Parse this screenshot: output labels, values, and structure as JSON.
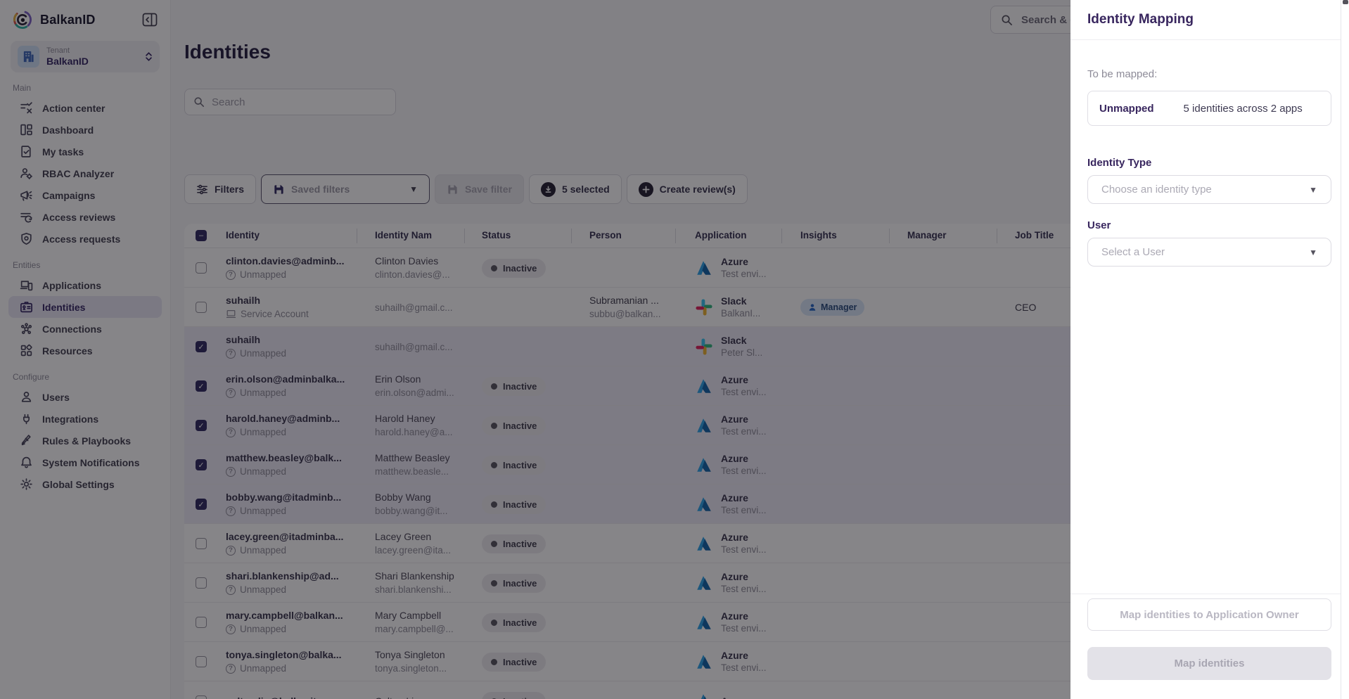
{
  "brand": {
    "name": "BalkanID",
    "tenant_label": "Tenant",
    "tenant_value": "BalkanID"
  },
  "topbar": {
    "global_search_text": "Search & d"
  },
  "sidebar": {
    "sections": [
      {
        "label": "Main",
        "items": [
          {
            "label": "Action center",
            "icon": "action-center-icon"
          },
          {
            "label": "Dashboard",
            "icon": "dashboard-icon"
          },
          {
            "label": "My tasks",
            "icon": "tasks-icon"
          },
          {
            "label": "RBAC Analyzer",
            "icon": "rbac-icon"
          },
          {
            "label": "Campaigns",
            "icon": "megaphone-icon"
          },
          {
            "label": "Access reviews",
            "icon": "reviews-icon"
          },
          {
            "label": "Access requests",
            "icon": "shield-icon"
          }
        ]
      },
      {
        "label": "Entities",
        "items": [
          {
            "label": "Applications",
            "icon": "devices-icon"
          },
          {
            "label": "Identities",
            "icon": "id-card-icon",
            "active": true
          },
          {
            "label": "Connections",
            "icon": "network-icon"
          },
          {
            "label": "Resources",
            "icon": "resources-icon"
          }
        ]
      },
      {
        "label": "Configure",
        "items": [
          {
            "label": "Users",
            "icon": "user-icon"
          },
          {
            "label": "Integrations",
            "icon": "plug-icon"
          },
          {
            "label": "Rules & Playbooks",
            "icon": "pen-icon"
          },
          {
            "label": "System Notifications",
            "icon": "bell-icon"
          },
          {
            "label": "Global Settings",
            "icon": "gear-icon"
          }
        ]
      }
    ]
  },
  "page": {
    "title": "Identities",
    "search_placeholder": "Search"
  },
  "toolbar": {
    "filters_label": "Filters",
    "saved_filters_label": "Saved filters",
    "save_filter_label": "Save filter",
    "selected_label": "5 selected",
    "create_review_label": "Create review(s)"
  },
  "table": {
    "columns": [
      "Identity",
      "Identity Nam",
      "Status",
      "Person",
      "Application",
      "Insights",
      "Manager",
      "Job Title"
    ],
    "rows": [
      {
        "identity": "clinton.davies@adminb...",
        "tag": "Unmapped",
        "tag_icon": "question",
        "name": "Clinton Davies",
        "email": "clinton.davies@...",
        "status": "Inactive",
        "person_name": "",
        "person_email": "",
        "app": "Azure",
        "app_sub": "Test envi...",
        "insight": "",
        "job_title": "",
        "checked": false,
        "selected": false
      },
      {
        "identity": "suhailh",
        "tag": "Service Account",
        "tag_icon": "monitor",
        "name": "",
        "email": "suhailh@gmail.c...",
        "status": "",
        "person_name": "Subramanian ...",
        "person_email": "subbu@balkan...",
        "app": "Slack",
        "app_sub": "BalkanI...",
        "insight": "Manager",
        "job_title": "CEO",
        "checked": false,
        "selected": false
      },
      {
        "identity": "suhailh",
        "tag": "Unmapped",
        "tag_icon": "question",
        "name": "",
        "email": "suhailh@gmail.c...",
        "status": "",
        "person_name": "",
        "person_email": "",
        "app": "Slack",
        "app_sub": "Peter Sl...",
        "insight": "",
        "job_title": "",
        "checked": true,
        "selected": true
      },
      {
        "identity": "erin.olson@adminbalka...",
        "tag": "Unmapped",
        "tag_icon": "question",
        "name": "Erin Olson",
        "email": "erin.olson@admi...",
        "status": "Inactive",
        "person_name": "",
        "person_email": "",
        "app": "Azure",
        "app_sub": "Test envi...",
        "insight": "",
        "job_title": "",
        "checked": true,
        "selected": true
      },
      {
        "identity": "harold.haney@adminb...",
        "tag": "Unmapped",
        "tag_icon": "question",
        "name": "Harold Haney",
        "email": "harold.haney@a...",
        "status": "Inactive",
        "person_name": "",
        "person_email": "",
        "app": "Azure",
        "app_sub": "Test envi...",
        "insight": "",
        "job_title": "",
        "checked": true,
        "selected": true
      },
      {
        "identity": "matthew.beasley@balk...",
        "tag": "Unmapped",
        "tag_icon": "question",
        "name": "Matthew Beasley",
        "email": "matthew.beasle...",
        "status": "Inactive",
        "person_name": "",
        "person_email": "",
        "app": "Azure",
        "app_sub": "Test envi...",
        "insight": "",
        "job_title": "",
        "checked": true,
        "selected": true
      },
      {
        "identity": "bobby.wang@itadminb...",
        "tag": "Unmapped",
        "tag_icon": "question",
        "name": "Bobby Wang",
        "email": "bobby.wang@it...",
        "status": "Inactive",
        "person_name": "",
        "person_email": "",
        "app": "Azure",
        "app_sub": "Test envi...",
        "insight": "",
        "job_title": "",
        "checked": true,
        "selected": true
      },
      {
        "identity": "lacey.green@itadminba...",
        "tag": "Unmapped",
        "tag_icon": "question",
        "name": "Lacey Green",
        "email": "lacey.green@ita...",
        "status": "Inactive",
        "person_name": "",
        "person_email": "",
        "app": "Azure",
        "app_sub": "Test envi...",
        "insight": "",
        "job_title": "",
        "checked": false,
        "selected": false
      },
      {
        "identity": "shari.blankenship@ad...",
        "tag": "Unmapped",
        "tag_icon": "question",
        "name": "Shari Blankenship",
        "email": "shari.blankenshi...",
        "status": "Inactive",
        "person_name": "",
        "person_email": "",
        "app": "Azure",
        "app_sub": "Test envi...",
        "insight": "",
        "job_title": "",
        "checked": false,
        "selected": false
      },
      {
        "identity": "mary.campbell@balkan...",
        "tag": "Unmapped",
        "tag_icon": "question",
        "name": "Mary Campbell",
        "email": "mary.campbell@...",
        "status": "Inactive",
        "person_name": "",
        "person_email": "",
        "app": "Azure",
        "app_sub": "Test envi...",
        "insight": "",
        "job_title": "",
        "checked": false,
        "selected": false
      },
      {
        "identity": "tonya.singleton@balka...",
        "tag": "Unmapped",
        "tag_icon": "question",
        "name": "Tonya Singleton",
        "email": "tonya.singleton...",
        "status": "Inactive",
        "person_name": "",
        "person_email": "",
        "app": "Azure",
        "app_sub": "Test envi...",
        "insight": "",
        "job_title": "",
        "checked": false,
        "selected": false
      },
      {
        "identity": "colton.liu@balkanit.on...",
        "tag": "",
        "tag_icon": "",
        "name": "Colton Liu",
        "email": "",
        "status": "Inactive",
        "person_name": "",
        "person_email": "",
        "app": "Azure",
        "app_sub": "",
        "insight": "",
        "job_title": "",
        "checked": false,
        "selected": false
      }
    ],
    "header_checkbox_state": "indeterminate"
  },
  "drawer": {
    "title": "Identity Mapping",
    "to_be_mapped_label": "To be mapped:",
    "summary_status": "Unmapped",
    "summary_text": "5 identities across 2 apps",
    "identity_type_label": "Identity Type",
    "identity_type_placeholder": "Choose an identity type",
    "user_label": "User",
    "user_placeholder": "Select a User",
    "map_to_owner_label": "Map identities to Application Owner",
    "map_identities_label": "Map identities"
  },
  "colors": {
    "brand_purple": "#38265E",
    "selected_row": "#ECEAF6",
    "sidebar_active": "#E9E7F4",
    "checkbox_checked": "#2E2960",
    "status_badge_bg": "#ECEBEF",
    "manager_badge_bg": "#D9E6F8",
    "manager_badge_text": "#274A7D",
    "azure_blue_light": "#2AA3E8",
    "azure_blue_dark": "#0F63A8",
    "slack_blue": "#36C5F0",
    "slack_green": "#2EB67D",
    "slack_yellow": "#ECB22E",
    "slack_red": "#E01E5A"
  }
}
